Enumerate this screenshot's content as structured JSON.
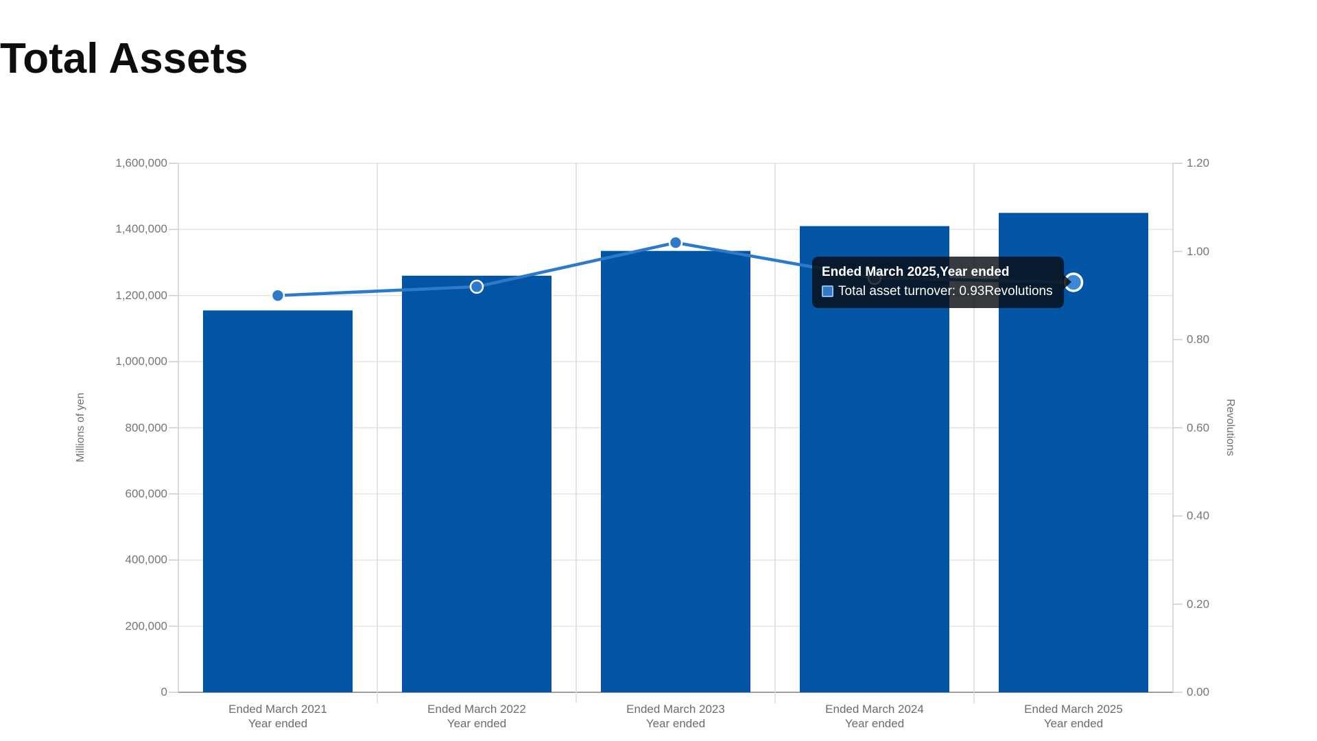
{
  "page": {
    "title": "Total Assets",
    "background_color": "#ffffff"
  },
  "chart_data": {
    "type": "combo",
    "title": "Total Assets",
    "categories": [
      "Ended March 2021",
      "Ended March 2022",
      "Ended March 2023",
      "Ended March 2024",
      "Ended March 2025"
    ],
    "category_sublabel": "Year ended",
    "series": [
      {
        "name": "Total assets",
        "type": "bar",
        "axis": "left",
        "color": "#0254A5",
        "values": [
          1155000,
          1260000,
          1335000,
          1410000,
          1450000
        ]
      },
      {
        "name": "Total asset turnover",
        "type": "line",
        "axis": "right",
        "color": "#2E79C9",
        "marker_fill": "#2E79C9",
        "marker_stroke": "#FFFFFF",
        "hover_marker_fill": "#3D87D6",
        "values": [
          0.9,
          0.92,
          1.02,
          0.94,
          0.93
        ],
        "hover_index": 4
      }
    ],
    "left_axis": {
      "title": "Millions of yen",
      "min": 0,
      "max": 1600000,
      "tick_interval": 200000,
      "tick_labels": [
        "0",
        "200,000",
        "400,000",
        "600,000",
        "800,000",
        "1,000,000",
        "1,200,000",
        "1,400,000",
        "1,600,000"
      ]
    },
    "right_axis": {
      "title": "Revolutions",
      "min": 0,
      "max": 1.2,
      "tick_interval": 0.2,
      "tick_labels": [
        "0.00",
        "0.20",
        "0.40",
        "0.60",
        "0.80",
        "1.00",
        "1.20"
      ]
    },
    "grid": true,
    "legend": "none"
  },
  "tooltip": {
    "header": "Ended March 2025,Year ended",
    "series_label": "Total asset turnover",
    "value": "0.93",
    "unit": "Revolutions",
    "line2": "Total asset turnover: 0.93Revolutions",
    "swatch_color": "#2E79C8"
  }
}
